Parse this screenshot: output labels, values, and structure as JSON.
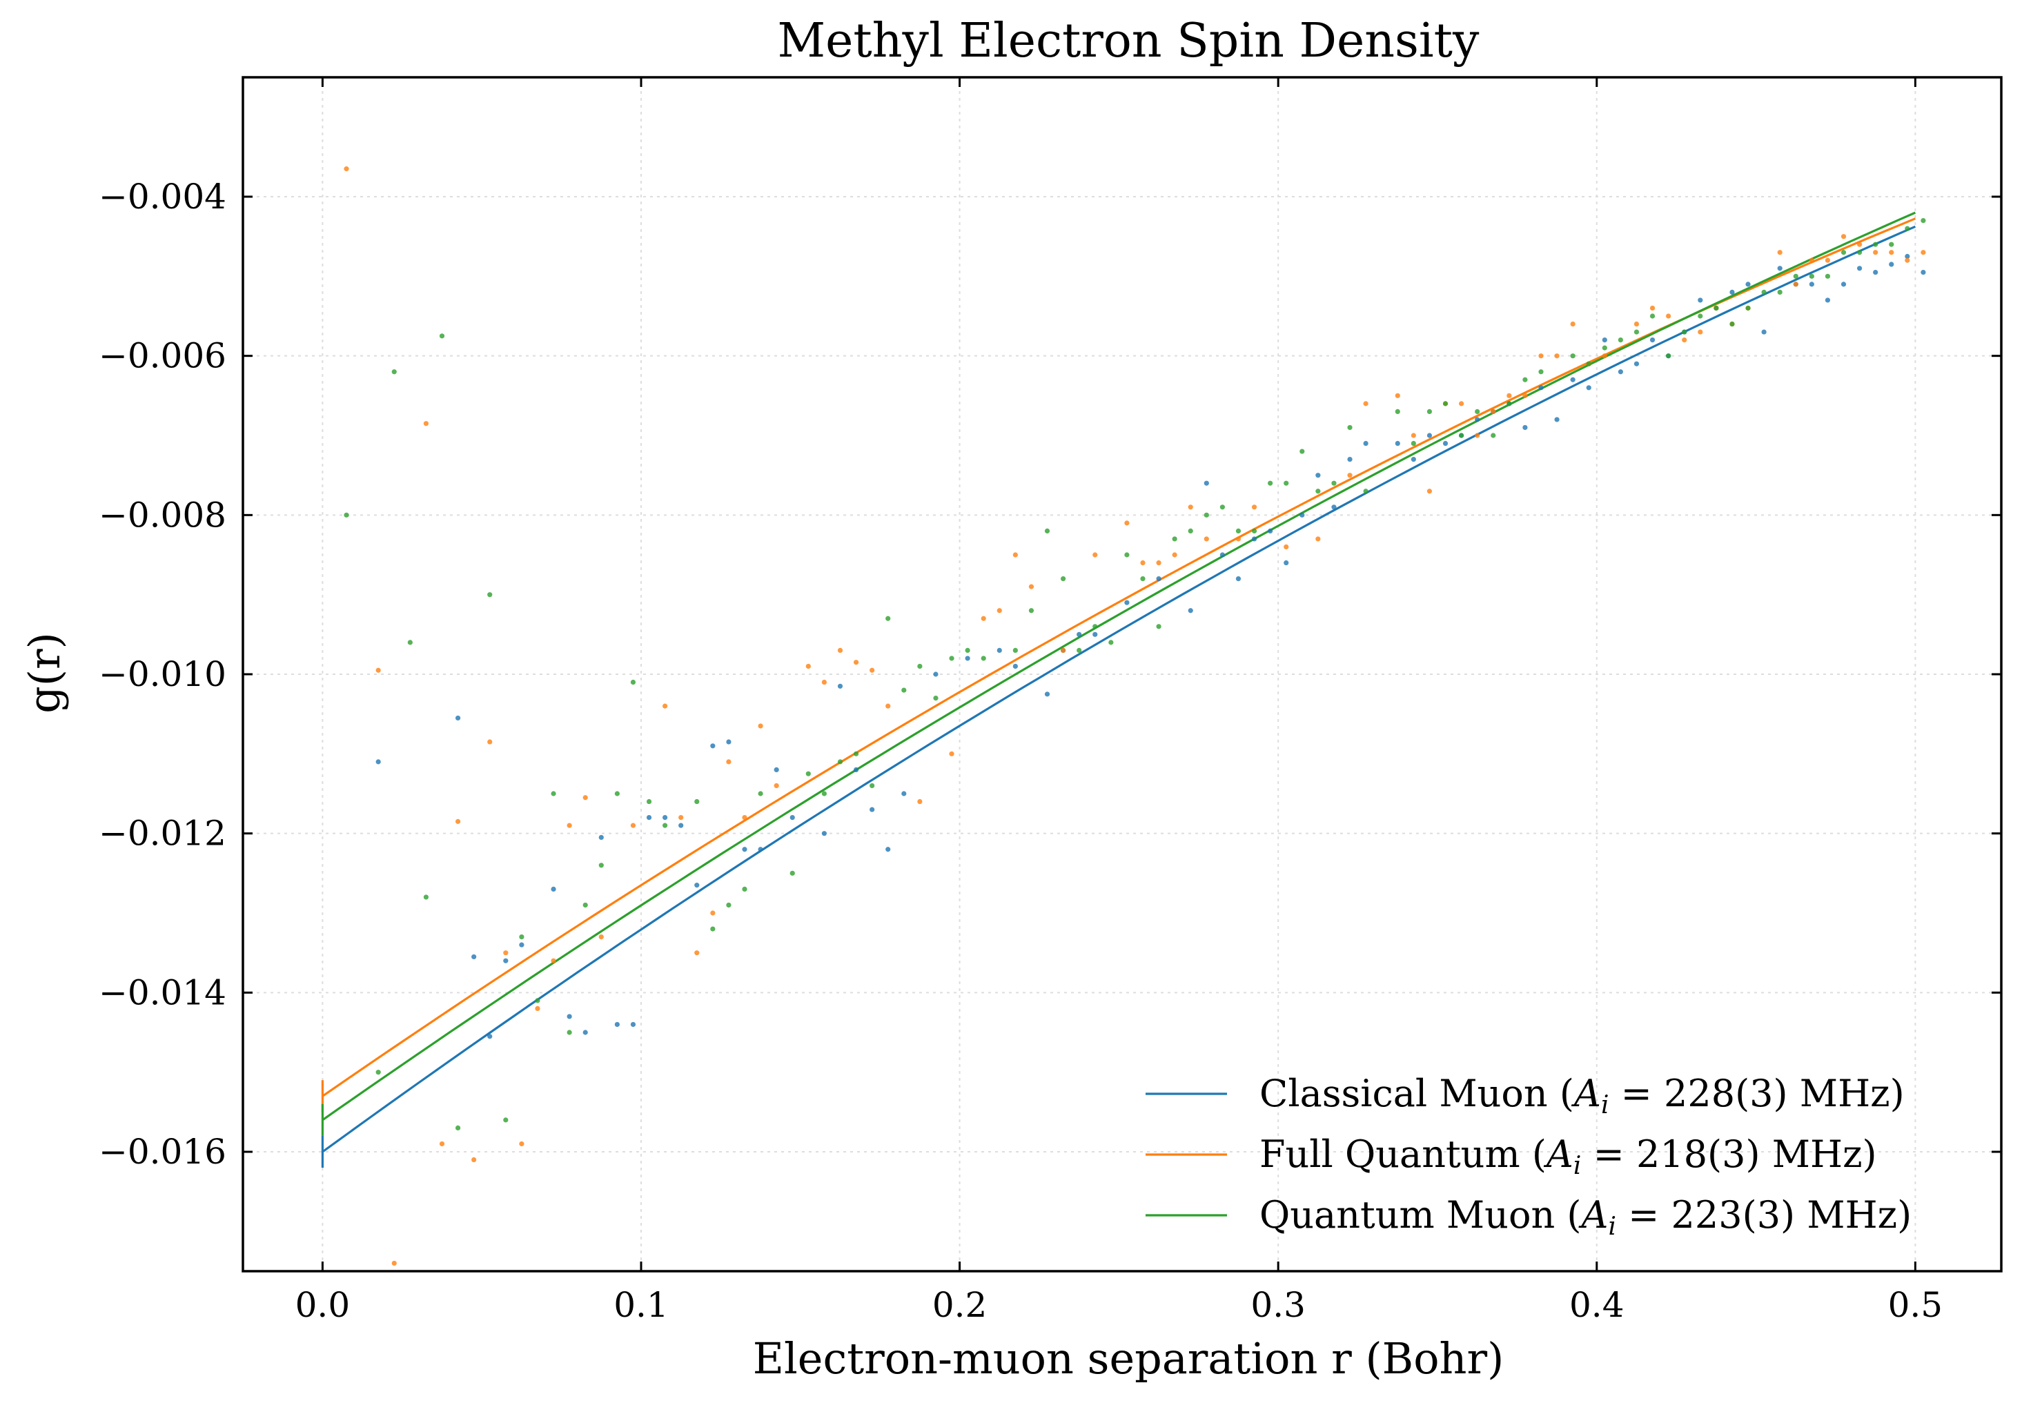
{
  "chart_data": {
    "type": "scatter",
    "title": "Methyl Electron Spin Density",
    "xlabel": "Electron-muon separation r (Bohr)",
    "ylabel": "g(r)",
    "xlim": [
      -0.025,
      0.527
    ],
    "ylim": [
      -0.0175,
      -0.0025
    ],
    "x_ticks": [
      0.0,
      0.1,
      0.2,
      0.3,
      0.4,
      0.5
    ],
    "x_tick_labels": [
      "0.0",
      "0.1",
      "0.2",
      "0.3",
      "0.4",
      "0.5"
    ],
    "y_ticks": [
      -0.016,
      -0.014,
      -0.012,
      -0.01,
      -0.008,
      -0.006,
      -0.004
    ],
    "y_tick_labels": [
      "−0.016",
      "−0.014",
      "−0.012",
      "−0.010",
      "−0.008",
      "−0.006",
      "−0.004"
    ],
    "grid": true,
    "legend_position": "lower-right",
    "series": [
      {
        "name": "Classical Muon (A_i = 228(3) MHz)",
        "legend_prefix": "Classical Muon (",
        "legend_suffix": " = 228(3) MHz)",
        "color": "#1f77b4",
        "fit": {
          "a": -0.016,
          "b": 0.0291,
          "c": -0.0117
        },
        "x": [
          0.0175,
          0.0425,
          0.0475,
          0.0525,
          0.0575,
          0.0625,
          0.0725,
          0.0775,
          0.0825,
          0.0875,
          0.0925,
          0.0975,
          0.1025,
          0.1075,
          0.1125,
          0.1175,
          0.1225,
          0.1275,
          0.1325,
          0.1375,
          0.1425,
          0.1475,
          0.1575,
          0.1625,
          0.1675,
          0.1725,
          0.1775,
          0.1825,
          0.1925,
          0.2025,
          0.2125,
          0.2175,
          0.2275,
          0.2325,
          0.2375,
          0.2425,
          0.2525,
          0.2625,
          0.2725,
          0.2775,
          0.2825,
          0.2875,
          0.2925,
          0.2975,
          0.3025,
          0.3075,
          0.3125,
          0.3175,
          0.3225,
          0.3275,
          0.3375,
          0.3425,
          0.3475,
          0.3525,
          0.3575,
          0.3625,
          0.3675,
          0.3725,
          0.3775,
          0.3825,
          0.3875,
          0.3925,
          0.3975,
          0.4025,
          0.4075,
          0.4125,
          0.4175,
          0.4225,
          0.4275,
          0.4325,
          0.4375,
          0.4425,
          0.4475,
          0.4525,
          0.4575,
          0.4625,
          0.4675,
          0.4725,
          0.4775,
          0.4825,
          0.4875,
          0.4925,
          0.4975,
          0.5025
        ],
        "values": [
          -0.0111,
          -0.01055,
          -0.01355,
          -0.01455,
          -0.0136,
          -0.0134,
          -0.0127,
          -0.0143,
          -0.0145,
          -0.01205,
          -0.0144,
          -0.0144,
          -0.0118,
          -0.0118,
          -0.0119,
          -0.01265,
          -0.0109,
          -0.01085,
          -0.0122,
          -0.0122,
          -0.0112,
          -0.0118,
          -0.012,
          -0.01015,
          -0.0112,
          -0.0117,
          -0.0122,
          -0.0115,
          -0.01,
          -0.0098,
          -0.0097,
          -0.0099,
          -0.01025,
          -0.0097,
          -0.0095,
          -0.0095,
          -0.0091,
          -0.0088,
          -0.0092,
          -0.0076,
          -0.0085,
          -0.0088,
          -0.0083,
          -0.0082,
          -0.0086,
          -0.008,
          -0.0075,
          -0.0079,
          -0.0073,
          -0.0071,
          -0.0071,
          -0.0073,
          -0.007,
          -0.0071,
          -0.007,
          -0.0068,
          -0.0067,
          -0.0066,
          -0.0069,
          -0.0064,
          -0.0068,
          -0.0063,
          -0.0064,
          -0.0058,
          -0.0062,
          -0.0061,
          -0.0058,
          -0.006,
          -0.0057,
          -0.0053,
          -0.0054,
          -0.0052,
          -0.0051,
          -0.0057,
          -0.0049,
          -0.0051,
          -0.0051,
          -0.0053,
          -0.0051,
          -0.0049,
          -0.00495,
          -0.00485,
          -0.00475,
          -0.00495
        ]
      },
      {
        "name": "Full Quantum (A_i = 218(3) MHz)",
        "legend_prefix": "Full Quantum (",
        "legend_suffix": " = 218(3) MHz)",
        "color": "#ff7f0e",
        "fit": {
          "a": -0.0153,
          "b": 0.0276,
          "c": -0.0111
        },
        "x": [
          0.0075,
          0.0175,
          0.0225,
          0.0325,
          0.0375,
          0.0425,
          0.0475,
          0.0525,
          0.0575,
          0.0625,
          0.0675,
          0.0725,
          0.0775,
          0.0825,
          0.0875,
          0.0975,
          0.1075,
          0.1125,
          0.1175,
          0.1225,
          0.1275,
          0.1325,
          0.1375,
          0.1425,
          0.1525,
          0.1575,
          0.1625,
          0.1675,
          0.1725,
          0.1775,
          0.1875,
          0.1975,
          0.2075,
          0.2125,
          0.2175,
          0.2225,
          0.2325,
          0.2425,
          0.2525,
          0.2575,
          0.2625,
          0.2675,
          0.2725,
          0.2775,
          0.2875,
          0.2925,
          0.3025,
          0.3125,
          0.3225,
          0.3275,
          0.3375,
          0.3425,
          0.3475,
          0.3525,
          0.3575,
          0.3625,
          0.3675,
          0.3725,
          0.3775,
          0.3825,
          0.3875,
          0.3925,
          0.3975,
          0.4025,
          0.4125,
          0.4175,
          0.4225,
          0.4275,
          0.4325,
          0.4375,
          0.4425,
          0.4475,
          0.4575,
          0.4625,
          0.4675,
          0.4725,
          0.4775,
          0.4825,
          0.4875,
          0.4925,
          0.4975,
          0.5025
        ],
        "values": [
          -0.00365,
          -0.00995,
          -0.0174,
          -0.00685,
          -0.0159,
          -0.01185,
          -0.0161,
          -0.01085,
          -0.0135,
          -0.0159,
          -0.0142,
          -0.0136,
          -0.0119,
          -0.01155,
          -0.0133,
          -0.0119,
          -0.0104,
          -0.0118,
          -0.0135,
          -0.013,
          -0.0111,
          -0.0118,
          -0.01065,
          -0.0114,
          -0.0099,
          -0.0101,
          -0.0097,
          -0.00985,
          -0.00995,
          -0.0104,
          -0.0116,
          -0.011,
          -0.0093,
          -0.0092,
          -0.0085,
          -0.0089,
          -0.0097,
          -0.0085,
          -0.0081,
          -0.0086,
          -0.0086,
          -0.0085,
          -0.0079,
          -0.0083,
          -0.0083,
          -0.0079,
          -0.0084,
          -0.0083,
          -0.0075,
          -0.0066,
          -0.0065,
          -0.007,
          -0.0077,
          -0.0066,
          -0.0066,
          -0.007,
          -0.0067,
          -0.0065,
          -0.0065,
          -0.006,
          -0.006,
          -0.0056,
          -0.0061,
          -0.006,
          -0.0056,
          -0.0054,
          -0.0055,
          -0.0058,
          -0.0057,
          -0.0054,
          -0.0056,
          -0.0054,
          -0.0047,
          -0.0051,
          -0.0048,
          -0.0048,
          -0.0045,
          -0.0046,
          -0.0047,
          -0.0047,
          -0.0048,
          -0.0047
        ]
      },
      {
        "name": "Quantum Muon (A_i = 223(3) MHz)",
        "legend_prefix": "Quantum Muon (",
        "legend_suffix": " = 223(3) MHz)",
        "color": "#2ca02c",
        "fit": {
          "a": -0.0156,
          "b": 0.028,
          "c": -0.0104
        },
        "x": [
          0.0075,
          0.0175,
          0.0225,
          0.0275,
          0.0325,
          0.0375,
          0.0425,
          0.0525,
          0.0575,
          0.0625,
          0.0675,
          0.0725,
          0.0775,
          0.0825,
          0.0875,
          0.0925,
          0.0975,
          0.1025,
          0.1075,
          0.1175,
          0.1225,
          0.1275,
          0.1325,
          0.1375,
          0.1475,
          0.1525,
          0.1575,
          0.1625,
          0.1675,
          0.1725,
          0.1775,
          0.1825,
          0.1875,
          0.1925,
          0.1975,
          0.2025,
          0.2075,
          0.2175,
          0.2225,
          0.2275,
          0.2325,
          0.2375,
          0.2425,
          0.2475,
          0.2525,
          0.2575,
          0.2625,
          0.2675,
          0.2725,
          0.2775,
          0.2825,
          0.2875,
          0.2925,
          0.2975,
          0.3025,
          0.3075,
          0.3125,
          0.3175,
          0.3225,
          0.3275,
          0.3375,
          0.3425,
          0.3475,
          0.3525,
          0.3575,
          0.3625,
          0.3675,
          0.3725,
          0.3775,
          0.3825,
          0.3925,
          0.3975,
          0.4025,
          0.4075,
          0.4125,
          0.4175,
          0.4225,
          0.4275,
          0.4325,
          0.4375,
          0.4425,
          0.4475,
          0.4525,
          0.4575,
          0.4625,
          0.4675,
          0.4725,
          0.4775,
          0.4825,
          0.4875,
          0.4925,
          0.4975,
          0.5025
        ],
        "values": [
          -0.008,
          -0.015,
          -0.0062,
          -0.0096,
          -0.0128,
          -0.00575,
          -0.0157,
          -0.009,
          -0.0156,
          -0.0133,
          -0.0141,
          -0.0115,
          -0.0145,
          -0.0129,
          -0.0124,
          -0.0115,
          -0.0101,
          -0.0116,
          -0.0119,
          -0.0116,
          -0.0132,
          -0.0129,
          -0.0127,
          -0.0115,
          -0.0125,
          -0.01125,
          -0.0115,
          -0.0111,
          -0.011,
          -0.0114,
          -0.0093,
          -0.0102,
          -0.0099,
          -0.0103,
          -0.0098,
          -0.0097,
          -0.0098,
          -0.0097,
          -0.0092,
          -0.0082,
          -0.0088,
          -0.0097,
          -0.0094,
          -0.0096,
          -0.0085,
          -0.0088,
          -0.0094,
          -0.0083,
          -0.0082,
          -0.008,
          -0.0079,
          -0.0082,
          -0.0082,
          -0.0076,
          -0.0076,
          -0.0072,
          -0.0077,
          -0.0076,
          -0.0069,
          -0.0077,
          -0.0067,
          -0.0071,
          -0.0067,
          -0.0066,
          -0.007,
          -0.0067,
          -0.007,
          -0.0066,
          -0.0063,
          -0.0062,
          -0.006,
          -0.0061,
          -0.0059,
          -0.0058,
          -0.0057,
          -0.0055,
          -0.006,
          -0.0057,
          -0.0055,
          -0.0054,
          -0.0056,
          -0.0054,
          -0.0052,
          -0.0052,
          -0.005,
          -0.005,
          -0.005,
          -0.0047,
          -0.0047,
          -0.0046,
          -0.0046,
          -0.0044,
          -0.0043
        ]
      }
    ]
  }
}
